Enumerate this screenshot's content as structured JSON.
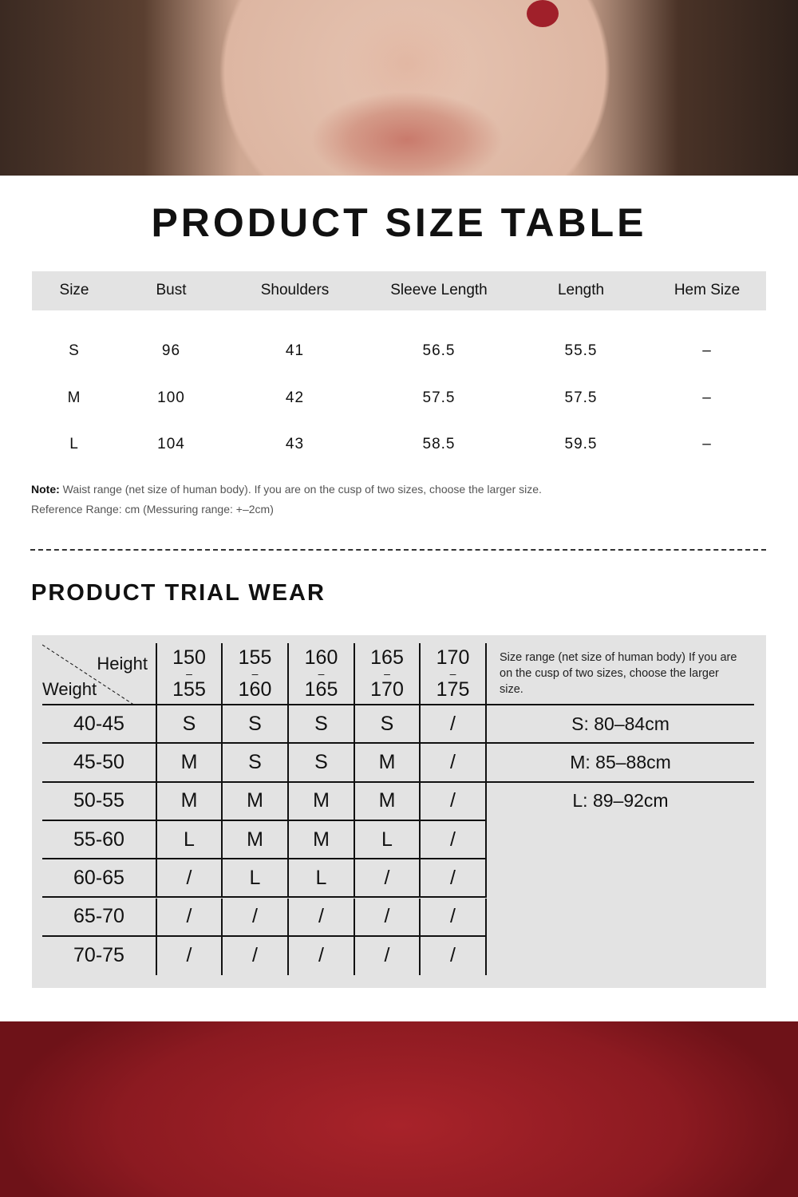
{
  "title": "PRODUCT SIZE TABLE",
  "size_table": {
    "headers": [
      "Size",
      "Bust",
      "Shoulders",
      "Sleeve Length",
      "Length",
      "Hem Size"
    ],
    "rows": [
      [
        "S",
        "96",
        "41",
        "56.5",
        "55.5",
        "–"
      ],
      [
        "M",
        "100",
        "42",
        "57.5",
        "57.5",
        "–"
      ],
      [
        "L",
        "104",
        "43",
        "58.5",
        "59.5",
        "–"
      ]
    ]
  },
  "note_label": "Note:",
  "note_text": "Waist range (net size of human body). If you are on the cusp of two sizes, choose the larger size.",
  "reference": "Reference Range: cm (Messuring range: +–2cm)",
  "trial_title": "PRODUCT TRIAL WEAR",
  "trial": {
    "height_label": "Height",
    "weight_label": "Weight",
    "heights": [
      [
        "150",
        "155"
      ],
      [
        "155",
        "160"
      ],
      [
        "160",
        "165"
      ],
      [
        "165",
        "170"
      ],
      [
        "170",
        "175"
      ]
    ],
    "dash": "–",
    "info": "Size range (net size of human body) If you are on the cusp of two sizes, choose the larger size.",
    "ranges": [
      "S: 80–84cm",
      "M: 85–88cm",
      "L: 89–92cm"
    ],
    "rows": [
      {
        "weight": "40-45",
        "sizes": [
          "S",
          "S",
          "S",
          "S",
          "/"
        ]
      },
      {
        "weight": "45-50",
        "sizes": [
          "M",
          "S",
          "S",
          "M",
          "/"
        ]
      },
      {
        "weight": "50-55",
        "sizes": [
          "M",
          "M",
          "M",
          "M",
          "/"
        ]
      },
      {
        "weight": "55-60",
        "sizes": [
          "L",
          "M",
          "M",
          "L",
          "/"
        ]
      },
      {
        "weight": "60-65",
        "sizes": [
          "/",
          "L",
          "L",
          "/",
          "/"
        ]
      },
      {
        "weight": "65-70",
        "sizes": [
          "/",
          "/",
          "/",
          "/",
          "/"
        ]
      },
      {
        "weight": "70-75",
        "sizes": [
          "/",
          "/",
          "/",
          "/",
          "/"
        ]
      }
    ]
  }
}
